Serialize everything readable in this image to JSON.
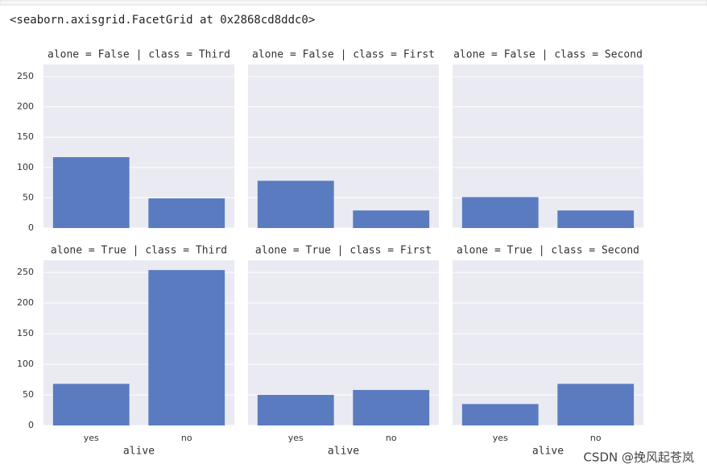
{
  "output_text": "<seaborn.axisgrid.FacetGrid at 0x2868cd8ddc0>",
  "chart_data": [
    {
      "type": "bar",
      "title": "alone = False | class = Third",
      "values": [
        117,
        49
      ]
    },
    {
      "type": "bar",
      "title": "alone = False | class = First",
      "values": [
        78,
        29
      ]
    },
    {
      "type": "bar",
      "title": "alone = False | class = Second",
      "values": [
        51,
        29
      ]
    },
    {
      "type": "bar",
      "title": "alone = True | class = Third",
      "values": [
        68,
        254
      ]
    },
    {
      "type": "bar",
      "title": "alone = True | class = First",
      "values": [
        50,
        58
      ]
    },
    {
      "type": "bar",
      "title": "alone = True | class = Second",
      "values": [
        35,
        68
      ]
    }
  ],
  "shared": {
    "categories": [
      "yes",
      "no"
    ],
    "x_label": "alive",
    "ylim": [
      0,
      270
    ],
    "yticks": [
      0,
      50,
      100,
      150,
      200,
      250
    ],
    "color": "#5a7bbf",
    "grid": true
  },
  "watermark": "CSDN @挽风起苍岚"
}
